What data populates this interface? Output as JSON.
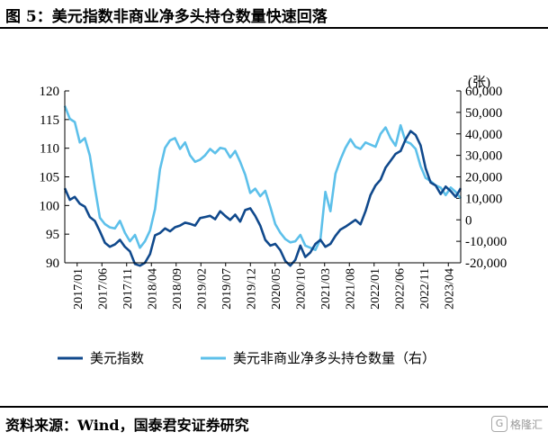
{
  "header": {
    "title": "图 5：美元指数非商业净多头持仓数量快速回落"
  },
  "footer": {
    "source": "资料来源：Wind，国泰君安证券研究",
    "watermark": "格隆汇"
  },
  "colors": {
    "dxy": "#10498C",
    "positions": "#5DC0EA",
    "axis": "#000000"
  },
  "chart_data": {
    "type": "line",
    "title": "",
    "left_axis": {
      "ylim": [
        90,
        120
      ],
      "ticks": [
        "120",
        "115",
        "110",
        "105",
        "100",
        "95",
        "90"
      ]
    },
    "right_axis": {
      "unit_label": "(张)",
      "ylim": [
        -20000,
        60000
      ],
      "ticks": [
        "60,000",
        "50,000",
        "40,000",
        "30,000",
        "20,000",
        "10,000",
        "0",
        "-10,000",
        "-20,000"
      ]
    },
    "x_ticks": [
      "2017/01",
      "2017/06",
      "2017/11",
      "2018/04",
      "2018/09",
      "2019/02",
      "2019/07",
      "2019/12",
      "2020/05",
      "2020/10",
      "2021/03",
      "2021/08",
      "2022/01",
      "2022/06",
      "2022/11",
      "2023/04"
    ],
    "legend": {
      "position": "bottom"
    },
    "series": [
      {
        "name": "美元指数",
        "axis": "left",
        "x": [
          0,
          1,
          2,
          3,
          4,
          5,
          6,
          7,
          8,
          9,
          10,
          11,
          12,
          13,
          14,
          15,
          16,
          17,
          18,
          19,
          20,
          21,
          22,
          23,
          24,
          25,
          26,
          27,
          28,
          29,
          30,
          31,
          32,
          33,
          34,
          35,
          36,
          37,
          38,
          39,
          40,
          41,
          42,
          43,
          44,
          45,
          46,
          47,
          48,
          49,
          50,
          51,
          52,
          53,
          54,
          55,
          56,
          57,
          58,
          59,
          60,
          61,
          62,
          63,
          64,
          65,
          66,
          67,
          68,
          69,
          70,
          71,
          72,
          73,
          74,
          75,
          76,
          77,
          78,
          79
        ],
        "values": [
          103.0,
          101.0,
          101.5,
          100.3,
          99.8,
          98.0,
          97.3,
          95.5,
          93.5,
          92.8,
          93.2,
          94.0,
          92.8,
          92.0,
          89.8,
          89.5,
          90.0,
          91.5,
          94.8,
          95.2,
          96.0,
          95.5,
          96.2,
          96.5,
          97.0,
          96.8,
          96.5,
          97.8,
          98.0,
          98.2,
          97.6,
          99.0,
          98.2,
          97.5,
          98.4,
          97.2,
          99.2,
          99.5,
          98.2,
          96.5,
          94.0,
          93.0,
          93.3,
          92.2,
          90.3,
          89.5,
          90.5,
          93.0,
          91.0,
          91.8,
          93.3,
          94.0,
          92.8,
          93.3,
          94.7,
          95.8,
          96.3,
          96.9,
          97.5,
          96.7,
          99.0,
          101.8,
          103.5,
          104.5,
          106.6,
          107.8,
          109.0,
          109.5,
          111.5,
          113.0,
          112.3,
          110.5,
          106.5,
          104.0,
          103.5,
          102.0,
          103.3,
          102.5,
          101.5,
          103.0
        ]
      },
      {
        "name": "美元非商业净多头持仓数量（右）",
        "axis": "right",
        "x": [
          0,
          1,
          2,
          3,
          4,
          5,
          6,
          7,
          8,
          9,
          10,
          11,
          12,
          13,
          14,
          15,
          16,
          17,
          18,
          19,
          20,
          21,
          22,
          23,
          24,
          25,
          26,
          27,
          28,
          29,
          30,
          31,
          32,
          33,
          34,
          35,
          36,
          37,
          38,
          39,
          40,
          41,
          42,
          43,
          44,
          45,
          46,
          47,
          48,
          49,
          50,
          51,
          52,
          53,
          54,
          55,
          56,
          57,
          58,
          59,
          60,
          61,
          62,
          63,
          64,
          65,
          66,
          67,
          68,
          69,
          70,
          71,
          72,
          73,
          74,
          75,
          76,
          77,
          78,
          79
        ],
        "values": [
          53000,
          47000,
          45500,
          36000,
          38000,
          30000,
          15000,
          1000,
          -2000,
          -3500,
          -4000,
          -500,
          -6000,
          -10000,
          -7000,
          -13000,
          -10000,
          -5000,
          5000,
          23500,
          33500,
          37000,
          38000,
          33000,
          36000,
          30000,
          27000,
          28000,
          30000,
          33000,
          31000,
          33500,
          33000,
          29000,
          32000,
          27000,
          21000,
          12500,
          14500,
          11000,
          13500,
          6000,
          -2000,
          -6000,
          -9000,
          -10500,
          -10000,
          -7000,
          -12000,
          -13000,
          -14000,
          -9000,
          13000,
          4000,
          21500,
          28000,
          33500,
          37500,
          34000,
          33000,
          36000,
          35000,
          34000,
          40000,
          43000,
          38000,
          34500,
          44000,
          36500,
          35500,
          33000,
          25000,
          19500,
          18000,
          16000,
          15000,
          11500,
          15000,
          13000,
          10000
        ]
      }
    ]
  }
}
